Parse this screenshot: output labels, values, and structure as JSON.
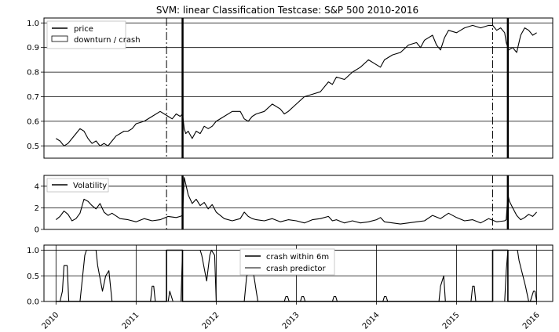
{
  "chart_data": [
    {
      "type": "line",
      "title": "SVM: linear Classification Testcase: S&P 500 2010-2016",
      "xlabel": "",
      "ylabel": "",
      "ylim": [
        0.45,
        1.02
      ],
      "yticks": [
        "0.5",
        "0.6",
        "0.7",
        "0.8",
        "0.9",
        "1.0"
      ],
      "grid": "horizontal",
      "legend_placement": "top-left",
      "series": [
        {
          "name": "price",
          "x": [
            2010.0,
            2010.05,
            2010.1,
            2010.15,
            2010.2,
            2010.25,
            2010.3,
            2010.35,
            2010.4,
            2010.45,
            2010.5,
            2010.55,
            2010.6,
            2010.65,
            2010.7,
            2010.75,
            2010.8,
            2010.85,
            2010.9,
            2010.95,
            2011.0,
            2011.1,
            2011.2,
            2011.3,
            2011.4,
            2011.45,
            2011.5,
            2011.55,
            2011.58,
            2011.6,
            2011.62,
            2011.65,
            2011.7,
            2011.75,
            2011.8,
            2011.85,
            2011.9,
            2011.95,
            2012.0,
            2012.1,
            2012.2,
            2012.3,
            2012.35,
            2012.4,
            2012.45,
            2012.5,
            2012.6,
            2012.7,
            2012.8,
            2012.85,
            2012.9,
            2013.0,
            2013.1,
            2013.2,
            2013.3,
            2013.4,
            2013.45,
            2013.5,
            2013.6,
            2013.7,
            2013.8,
            2013.9,
            2014.0,
            2014.05,
            2014.1,
            2014.2,
            2014.3,
            2014.4,
            2014.5,
            2014.55,
            2014.6,
            2014.7,
            2014.75,
            2014.8,
            2014.85,
            2014.9,
            2015.0,
            2015.05,
            2015.1,
            2015.2,
            2015.3,
            2015.4,
            2015.45,
            2015.5,
            2015.55,
            2015.6,
            2015.62,
            2015.65,
            2015.7,
            2015.75,
            2015.8,
            2015.85,
            2015.9,
            2015.95,
            2016.0
          ],
          "values": [
            0.53,
            0.52,
            0.5,
            0.51,
            0.53,
            0.55,
            0.57,
            0.56,
            0.53,
            0.51,
            0.52,
            0.5,
            0.51,
            0.5,
            0.52,
            0.54,
            0.55,
            0.56,
            0.56,
            0.57,
            0.59,
            0.6,
            0.62,
            0.64,
            0.62,
            0.61,
            0.63,
            0.62,
            0.63,
            0.57,
            0.55,
            0.56,
            0.53,
            0.56,
            0.55,
            0.58,
            0.57,
            0.58,
            0.6,
            0.62,
            0.64,
            0.64,
            0.61,
            0.6,
            0.62,
            0.63,
            0.64,
            0.67,
            0.65,
            0.63,
            0.64,
            0.67,
            0.7,
            0.71,
            0.72,
            0.76,
            0.75,
            0.78,
            0.77,
            0.8,
            0.82,
            0.85,
            0.83,
            0.82,
            0.85,
            0.87,
            0.88,
            0.91,
            0.92,
            0.9,
            0.93,
            0.95,
            0.91,
            0.89,
            0.94,
            0.97,
            0.96,
            0.97,
            0.98,
            0.99,
            0.98,
            0.99,
            0.99,
            0.97,
            0.98,
            0.96,
            0.92,
            0.89,
            0.9,
            0.88,
            0.95,
            0.98,
            0.97,
            0.95,
            0.96
          ]
        }
      ],
      "legend": [
        "price",
        "downturn / crash"
      ],
      "crash_markers": {
        "dashdot": [
          2011.38,
          2015.45
        ],
        "solid": [
          2011.58,
          2015.64
        ]
      }
    },
    {
      "type": "line",
      "ylim": [
        0,
        5
      ],
      "yticks": [
        "0",
        "2",
        "4"
      ],
      "grid": "horizontal",
      "legend_placement": "top-left",
      "series": [
        {
          "name": "Volatility",
          "x": [
            2010.0,
            2010.05,
            2010.1,
            2010.15,
            2010.2,
            2010.25,
            2010.3,
            2010.35,
            2010.4,
            2010.45,
            2010.5,
            2010.55,
            2010.6,
            2010.65,
            2010.7,
            2010.8,
            2010.9,
            2011.0,
            2011.1,
            2011.2,
            2011.3,
            2011.4,
            2011.5,
            2011.55,
            2011.58,
            2011.6,
            2011.62,
            2011.65,
            2011.7,
            2011.75,
            2011.8,
            2011.85,
            2011.9,
            2011.95,
            2012.0,
            2012.1,
            2012.2,
            2012.3,
            2012.35,
            2012.4,
            2012.45,
            2012.5,
            2012.6,
            2012.7,
            2012.8,
            2012.9,
            2013.0,
            2013.1,
            2013.2,
            2013.3,
            2013.4,
            2013.45,
            2013.5,
            2013.6,
            2013.7,
            2013.8,
            2013.9,
            2014.0,
            2014.05,
            2014.1,
            2014.2,
            2014.3,
            2014.4,
            2014.5,
            2014.6,
            2014.7,
            2014.8,
            2014.9,
            2015.0,
            2015.1,
            2015.2,
            2015.3,
            2015.4,
            2015.5,
            2015.6,
            2015.62,
            2015.64,
            2015.66,
            2015.7,
            2015.75,
            2015.8,
            2015.85,
            2015.9,
            2015.95,
            2016.0
          ],
          "values": [
            0.9,
            1.2,
            1.7,
            1.4,
            0.8,
            1.0,
            1.5,
            2.8,
            2.6,
            2.2,
            1.9,
            2.4,
            1.6,
            1.3,
            1.5,
            1.0,
            0.9,
            0.7,
            1.0,
            0.8,
            0.9,
            1.2,
            1.1,
            1.2,
            1.3,
            4.8,
            4.2,
            3.2,
            2.4,
            2.8,
            2.2,
            2.5,
            1.9,
            2.3,
            1.6,
            1.0,
            0.8,
            1.0,
            1.6,
            1.2,
            1.0,
            0.9,
            0.8,
            1.0,
            0.7,
            0.9,
            0.8,
            0.6,
            0.9,
            1.0,
            1.2,
            0.8,
            0.9,
            0.6,
            0.8,
            0.6,
            0.7,
            0.9,
            1.1,
            0.7,
            0.6,
            0.5,
            0.6,
            0.7,
            0.8,
            1.3,
            1.0,
            1.5,
            1.1,
            0.8,
            0.9,
            0.6,
            1.0,
            0.7,
            0.8,
            0.9,
            3.2,
            2.6,
            2.0,
            1.3,
            0.9,
            1.1,
            1.4,
            1.2,
            1.6
          ]
        }
      ],
      "crash_markers": {
        "dashdot": [
          2011.38,
          2015.45
        ],
        "solid": [
          2011.58,
          2015.64
        ]
      }
    },
    {
      "type": "line",
      "ylim": [
        0,
        1.1
      ],
      "yticks": [
        "0.0",
        "0.5",
        "1.0"
      ],
      "xticks": [
        "2010",
        "2011",
        "2012",
        "2013",
        "2014",
        "2015",
        "2016"
      ],
      "grid": "both",
      "legend_placement": "top-center",
      "series": [
        {
          "name": "crash within 6m",
          "x": [
            2010.0,
            2011.38,
            2011.38,
            2011.58,
            2011.58,
            2015.45,
            2015.45,
            2015.64,
            2015.64,
            2016.0
          ],
          "values": [
            0,
            0,
            1,
            1,
            0,
            0,
            1,
            1,
            0,
            0
          ]
        },
        {
          "name": "crash predictor",
          "x": [
            2010.0,
            2010.05,
            2010.08,
            2010.1,
            2010.14,
            2010.16,
            2010.3,
            2010.36,
            2010.38,
            2010.5,
            2010.52,
            2010.58,
            2010.62,
            2010.66,
            2010.68,
            2010.7,
            2010.72,
            2011.18,
            2011.2,
            2011.22,
            2011.24,
            2011.4,
            2011.42,
            2011.44,
            2011.46,
            2011.56,
            2011.58,
            2011.62,
            2011.64,
            2011.8,
            2011.82,
            2011.88,
            2011.92,
            2011.94,
            2011.98,
            2012.0,
            2012.35,
            2012.38,
            2012.42,
            2012.46,
            2012.48,
            2012.5,
            2012.52,
            2012.85,
            2012.87,
            2012.89,
            2012.91,
            2013.05,
            2013.07,
            2013.09,
            2013.11,
            2013.45,
            2013.47,
            2013.49,
            2013.51,
            2014.08,
            2014.1,
            2014.12,
            2014.14,
            2014.78,
            2014.8,
            2014.84,
            2014.86,
            2015.18,
            2015.2,
            2015.22,
            2015.24,
            2015.6,
            2015.62,
            2015.64,
            2015.66,
            2015.76,
            2015.78,
            2015.86,
            2015.9,
            2015.92,
            2015.96,
            2015.98,
            2016.0
          ],
          "values": [
            0,
            0,
            0.2,
            0.7,
            0.7,
            0,
            0,
            0.9,
            1,
            1,
            0.7,
            0.2,
            0.5,
            0.6,
            0.3,
            0,
            0,
            0,
            0.3,
            0.3,
            0,
            0,
            0.2,
            0.1,
            0,
            0,
            1,
            1,
            1,
            1,
            0.9,
            0.4,
            0.9,
            1,
            0.9,
            0,
            0,
            0.5,
            0.6,
            0.6,
            0.4,
            0.2,
            0,
            0,
            0.1,
            0.1,
            0,
            0,
            0.1,
            0.1,
            0,
            0,
            0.1,
            0.1,
            0,
            0,
            0.1,
            0.1,
            0,
            0,
            0.3,
            0.5,
            0,
            0,
            0.3,
            0.3,
            0,
            0,
            0.6,
            1,
            1,
            1,
            0.8,
            0.3,
            0,
            0,
            0.2,
            0.2,
            0
          ]
        }
      ]
    }
  ]
}
